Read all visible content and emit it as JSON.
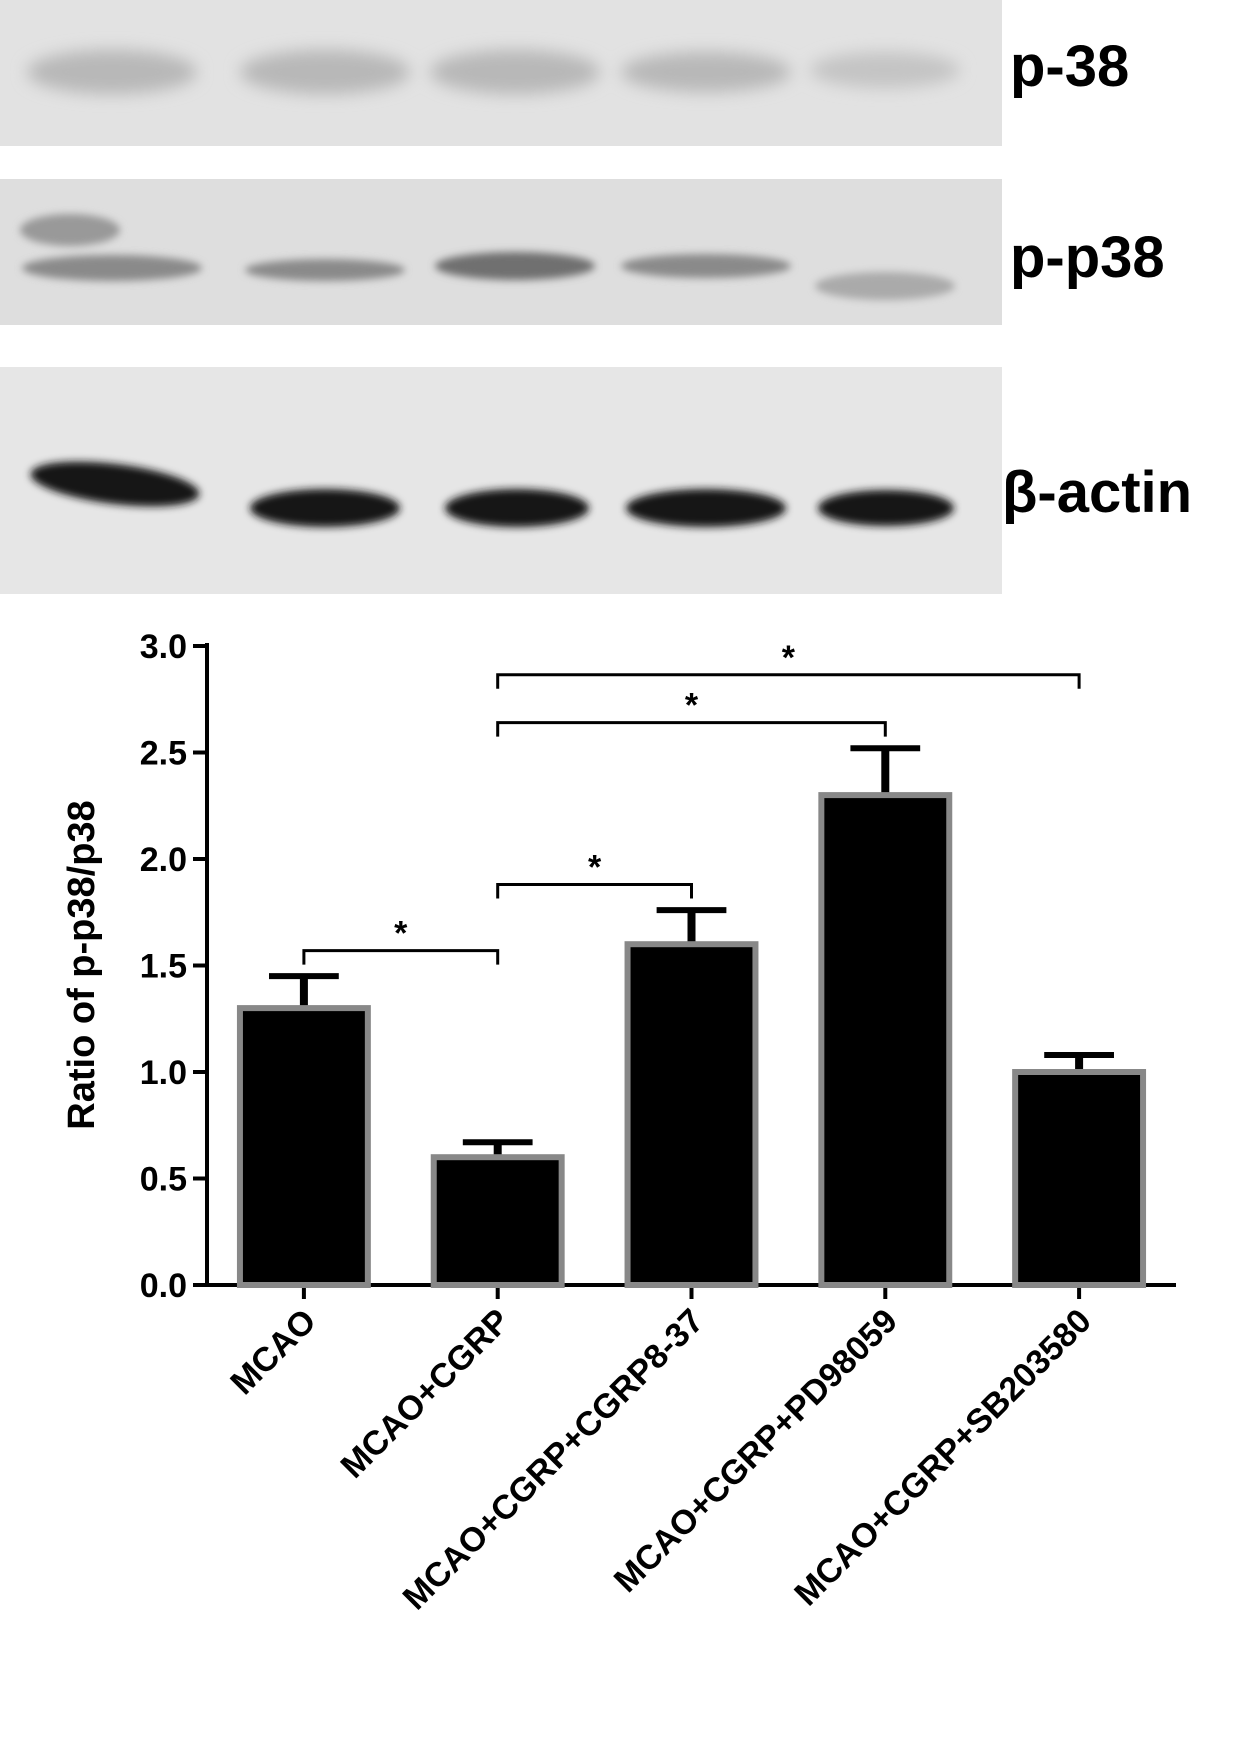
{
  "blots": {
    "labels": [
      "p-38",
      "p-p38",
      "β-actin"
    ]
  },
  "chart_data": {
    "type": "bar",
    "y_label": "Ratio of p-p38/p38",
    "categories": [
      "MCAO",
      "MCAO+CGRP",
      "MCAO+CGRP+CGRP8-37",
      "MCAO+CGRP+PD98059",
      "MCAO+CGRP+SB203580"
    ],
    "values": [
      1.3,
      0.6,
      1.6,
      2.3,
      1.0
    ],
    "errors": [
      0.15,
      0.07,
      0.16,
      0.22,
      0.08
    ],
    "color": "#000000",
    "edgecolor": "#888888",
    "ylim": [
      0,
      3.0
    ],
    "yticks": [
      {
        "value": 0,
        "label": "0.0"
      },
      0.5,
      {
        "value": 1,
        "label": "1.0"
      },
      1.5,
      {
        "value": 2,
        "label": "2.0"
      },
      2.5,
      {
        "value": 3,
        "label": "3.0"
      }
    ],
    "annotations": [
      {
        "text": "*",
        "between": [
          "MCAO",
          "MCAO+CGRP"
        ]
      },
      {
        "text": "*",
        "between": [
          "MCAO+CGRP",
          "MCAO+CGRP+CGRP8-37"
        ]
      },
      {
        "text": "*",
        "between": [
          "MCAO+CGRP",
          "MCAO+CGRP+PD98059"
        ]
      },
      {
        "text": "*",
        "between": [
          "MCAO+CGRP",
          "MCAO+CGRP+SB203580"
        ]
      }
    ]
  }
}
